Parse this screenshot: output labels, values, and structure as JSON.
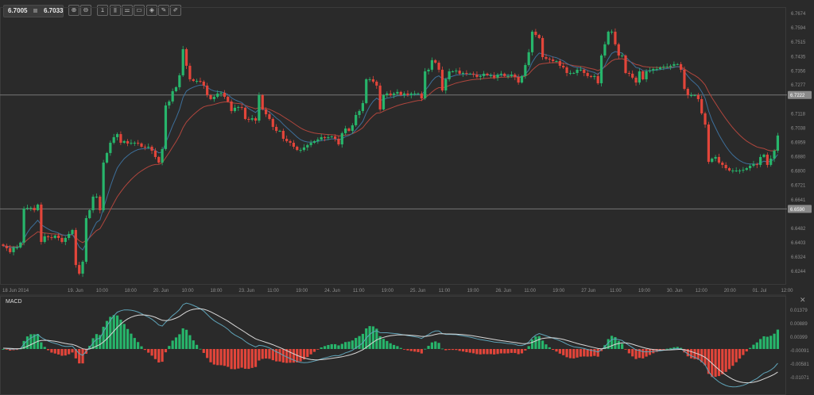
{
  "toolbar": {
    "bid": "6.7005",
    "ask": "6.7033",
    "buttons": [
      {
        "icon": "zoom-in-icon",
        "glyph": "⊕"
      },
      {
        "icon": "zoom-out-icon",
        "glyph": "⊖"
      },
      {
        "icon": "timeframe-icon",
        "glyph": "1"
      },
      {
        "icon": "chart-type-icon",
        "glyph": "⫼"
      },
      {
        "icon": "indicators-icon",
        "glyph": "☰"
      },
      {
        "icon": "chart-window-icon",
        "glyph": "▭"
      },
      {
        "icon": "tag-icon",
        "glyph": "◈"
      },
      {
        "icon": "edit-icon",
        "glyph": "✎"
      },
      {
        "icon": "draw-icon",
        "glyph": "✐"
      }
    ]
  },
  "colors": {
    "background": "#2a2a2a",
    "up": "#27b56b",
    "down": "#e2453a",
    "ema_fast": "#3d6f9a",
    "ema_slow": "#b0463d",
    "macd_line": "#5fa3b8",
    "signal_line": "#d8d8d8",
    "hline": "#767676"
  },
  "chart_data": [
    {
      "type": "candlestick",
      "title": "",
      "y_ticks": [
        "6.7674",
        "6.7594",
        "6.7515",
        "6.7435",
        "6.7356",
        "6.7277",
        "6.7118",
        "6.7038",
        "6.6959",
        "6.6880",
        "6.6800",
        "6.6721",
        "6.6641",
        "6.6482",
        "6.6403",
        "6.6324",
        "6.6244"
      ],
      "ylim": [
        6.619,
        6.774
      ],
      "x_ticks": [
        "18 Jun 2014",
        "19. Jun",
        "10:00",
        "18:00",
        "20. Jun",
        "10:00",
        "18:00",
        "23. Jun",
        "11:00",
        "19:00",
        "24. Jun",
        "11:00",
        "19:00",
        "25. Jun",
        "11:00",
        "19:00",
        "26. Jun",
        "11:00",
        "19:00",
        "27 Jun",
        "11:00",
        "19:00",
        "30. Jun",
        "12:00",
        "20:00",
        "01. Jul",
        "12:00"
      ],
      "horizontal_lines": [
        {
          "value": 6.7222,
          "label": "6.7222"
        },
        {
          "value": 6.659,
          "label": "6.6590"
        }
      ],
      "overlays": [
        "fast moving average (blue)",
        "slow moving average (red)"
      ],
      "close": [
        6.6385,
        6.6372,
        6.635,
        6.6376,
        6.6376,
        6.6403,
        6.6592,
        6.6596,
        6.6596,
        6.6583,
        6.6614,
        6.6407,
        6.6438,
        6.6433,
        6.6429,
        6.6442,
        6.6429,
        6.6407,
        6.6429,
        6.6451,
        6.6473,
        6.6279,
        6.6231,
        6.6297,
        6.6539,
        6.6583,
        6.6658,
        6.6658,
        6.6583,
        6.6847,
        6.69,
        6.6957,
        6.6988,
        6.7005,
        6.6957,
        6.6966,
        6.6953,
        6.6957,
        6.6957,
        6.6953,
        6.6935,
        6.6931,
        6.6935,
        6.6913,
        6.6878,
        6.6847,
        6.6922,
        6.7164,
        6.7186,
        6.7243,
        6.7265,
        6.7331,
        6.7476,
        6.7384,
        6.7309,
        6.73,
        6.73,
        6.7296,
        6.7274,
        6.7221,
        6.7199,
        6.7212,
        6.723,
        6.7234,
        6.7212,
        6.7186,
        6.7133,
        6.7151,
        6.7155,
        6.7151,
        6.7089,
        6.7085,
        6.7093,
        6.708,
        6.7221,
        6.7142,
        6.7115,
        6.7089,
        6.7045,
        6.7023,
        6.7023,
        6.6979,
        6.6966,
        6.6957,
        6.6935,
        6.6917,
        6.6917,
        6.6931,
        6.6944,
        6.6957,
        6.6966,
        6.6975,
        6.6988,
        6.6983,
        6.6988,
        6.6992,
        6.6979,
        6.6948,
        6.701,
        6.7036,
        6.7023,
        6.7054,
        6.7111,
        6.7133,
        6.7177,
        6.7309,
        6.7309,
        6.7296,
        6.7274,
        6.7142,
        6.7221,
        6.723,
        6.7221,
        6.723,
        6.7239,
        6.7221,
        6.723,
        6.7221,
        6.723,
        6.723,
        6.723,
        6.7203,
        6.7353,
        6.7362,
        6.7415,
        6.7401,
        6.7362,
        6.7247,
        6.7309,
        6.7353,
        6.7353,
        6.7357,
        6.734,
        6.7344,
        6.734,
        6.734,
        6.7335,
        6.7322,
        6.7327,
        6.734,
        6.7331,
        6.7331,
        6.7318,
        6.7335,
        6.734,
        6.7327,
        6.7327,
        6.7335,
        6.7322,
        6.7291,
        6.7327,
        6.7388,
        6.7459,
        6.7573,
        6.7555,
        6.7538,
        6.7432,
        6.7423,
        6.7419,
        6.741,
        6.741,
        6.7384,
        6.7375,
        6.7344,
        6.7344,
        6.7344,
        6.7362,
        6.7362,
        6.7344,
        6.7327,
        6.7322,
        6.7327,
        6.7287,
        6.7441,
        6.7503,
        6.7573,
        6.7573,
        6.7503,
        6.7441,
        6.7441,
        6.7344,
        6.734,
        6.7318,
        6.7291,
        6.7353,
        6.7309,
        6.7353,
        6.7357,
        6.7366,
        6.7366,
        6.7375,
        6.7379,
        6.7379,
        6.7384,
        6.7393,
        6.7393,
        6.7362,
        6.7256,
        6.7221,
        6.7221,
        6.7221,
        6.7199,
        6.712,
        6.7058,
        6.6851,
        6.6869,
        6.6878,
        6.6847,
        6.6834,
        6.6816,
        6.6803,
        6.6803,
        6.6803,
        6.6803,
        6.6807,
        6.6816,
        6.6829,
        6.6838,
        6.6834,
        6.6878,
        6.6891,
        6.6834,
        6.6869,
        6.6913,
        6.6997
      ]
    },
    {
      "type": "line",
      "title": "MACD",
      "y_ticks": [
        "0.01379",
        "0.00889",
        "0.00399",
        "-0.00091",
        "-0.00581",
        "-0.01071"
      ],
      "series_note": "MACD line, signal line and histogram derived from the price closes"
    }
  ]
}
